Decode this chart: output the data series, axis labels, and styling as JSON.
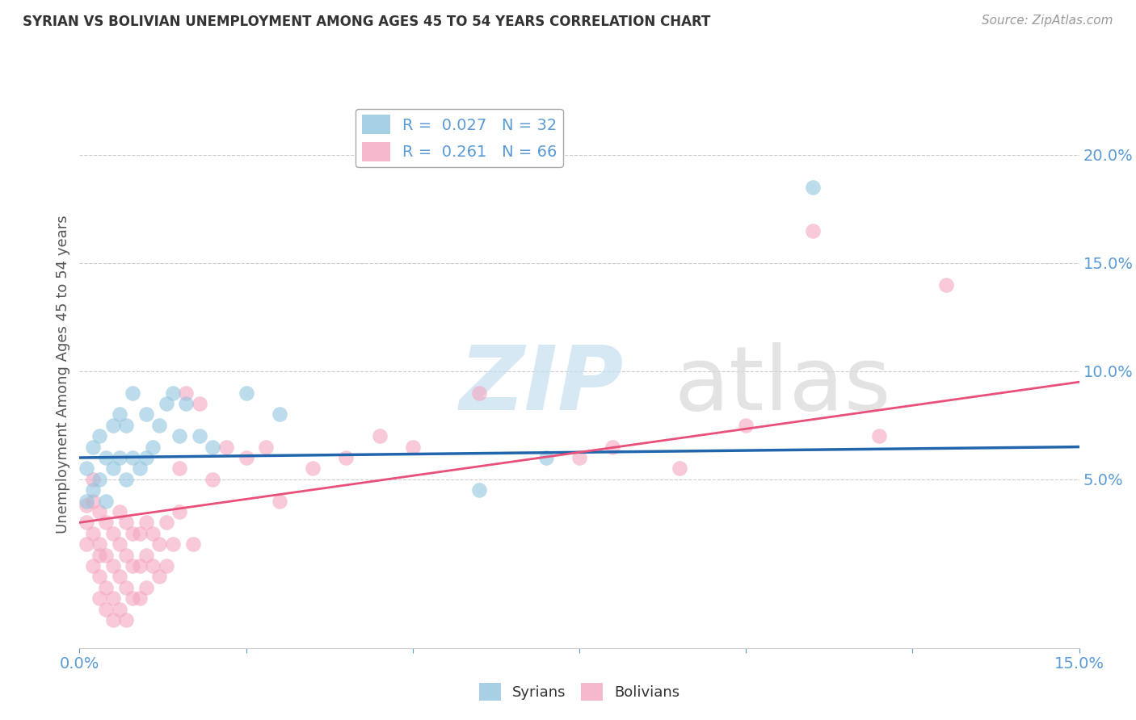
{
  "title": "SYRIAN VS BOLIVIAN UNEMPLOYMENT AMONG AGES 45 TO 54 YEARS CORRELATION CHART",
  "source": "Source: ZipAtlas.com",
  "ylabel": "Unemployment Among Ages 45 to 54 years",
  "xlim": [
    0.0,
    0.15
  ],
  "ylim": [
    -0.028,
    0.225
  ],
  "xtick_positions": [
    0.0,
    0.025,
    0.05,
    0.075,
    0.1,
    0.125,
    0.15
  ],
  "xtick_labels": [
    "0.0%",
    "",
    "",
    "",
    "",
    "",
    "15.0%"
  ],
  "yticks_right": [
    0.05,
    0.1,
    0.15,
    0.2
  ],
  "ytick_labels_right": [
    "5.0%",
    "10.0%",
    "15.0%",
    "20.0%"
  ],
  "syrians_color": "#92c5de",
  "bolivians_color": "#f4a6c0",
  "trend_syrians_color": "#2166ac",
  "trend_bolivians_color": "#e8507a",
  "background_color": "#ffffff",
  "grid_color": "#cccccc",
  "axis_color": "#5b9bd5",
  "syrians_x": [
    0.001,
    0.001,
    0.002,
    0.002,
    0.003,
    0.003,
    0.004,
    0.004,
    0.005,
    0.005,
    0.006,
    0.006,
    0.007,
    0.007,
    0.008,
    0.008,
    0.009,
    0.01,
    0.01,
    0.011,
    0.012,
    0.013,
    0.014,
    0.015,
    0.016,
    0.018,
    0.02,
    0.025,
    0.03,
    0.06,
    0.07,
    0.11
  ],
  "syrians_y": [
    0.04,
    0.055,
    0.045,
    0.065,
    0.05,
    0.07,
    0.04,
    0.06,
    0.055,
    0.075,
    0.06,
    0.08,
    0.05,
    0.075,
    0.06,
    0.09,
    0.055,
    0.06,
    0.08,
    0.065,
    0.075,
    0.085,
    0.09,
    0.07,
    0.085,
    0.07,
    0.065,
    0.09,
    0.08,
    0.045,
    0.06,
    0.185
  ],
  "bolivians_x": [
    0.001,
    0.001,
    0.001,
    0.002,
    0.002,
    0.002,
    0.002,
    0.003,
    0.003,
    0.003,
    0.003,
    0.003,
    0.004,
    0.004,
    0.004,
    0.004,
    0.005,
    0.005,
    0.005,
    0.005,
    0.006,
    0.006,
    0.006,
    0.006,
    0.007,
    0.007,
    0.007,
    0.007,
    0.008,
    0.008,
    0.008,
    0.009,
    0.009,
    0.009,
    0.01,
    0.01,
    0.01,
    0.011,
    0.011,
    0.012,
    0.012,
    0.013,
    0.013,
    0.014,
    0.015,
    0.015,
    0.016,
    0.017,
    0.018,
    0.02,
    0.022,
    0.025,
    0.028,
    0.03,
    0.035,
    0.04,
    0.045,
    0.05,
    0.06,
    0.075,
    0.08,
    0.09,
    0.1,
    0.11,
    0.12,
    0.13
  ],
  "bolivians_y": [
    0.038,
    0.03,
    0.02,
    0.04,
    0.025,
    0.01,
    0.05,
    0.035,
    0.02,
    0.015,
    0.005,
    -0.005,
    0.03,
    0.015,
    0.0,
    -0.01,
    0.025,
    0.01,
    -0.005,
    -0.015,
    0.035,
    0.02,
    0.005,
    -0.01,
    0.03,
    0.015,
    0.0,
    -0.015,
    0.025,
    0.01,
    -0.005,
    0.025,
    0.01,
    -0.005,
    0.03,
    0.015,
    0.0,
    0.025,
    0.01,
    0.02,
    0.005,
    0.03,
    0.01,
    0.02,
    0.055,
    0.035,
    0.09,
    0.02,
    0.085,
    0.05,
    0.065,
    0.06,
    0.065,
    0.04,
    0.055,
    0.06,
    0.07,
    0.065,
    0.09,
    0.06,
    0.065,
    0.055,
    0.075,
    0.165,
    0.07,
    0.14
  ],
  "syrians_trend_x": [
    0.0,
    0.15
  ],
  "syrians_trend_y": [
    0.06,
    0.065
  ],
  "bolivians_trend_x": [
    0.0,
    0.15
  ],
  "bolivians_trend_y": [
    0.03,
    0.095
  ]
}
